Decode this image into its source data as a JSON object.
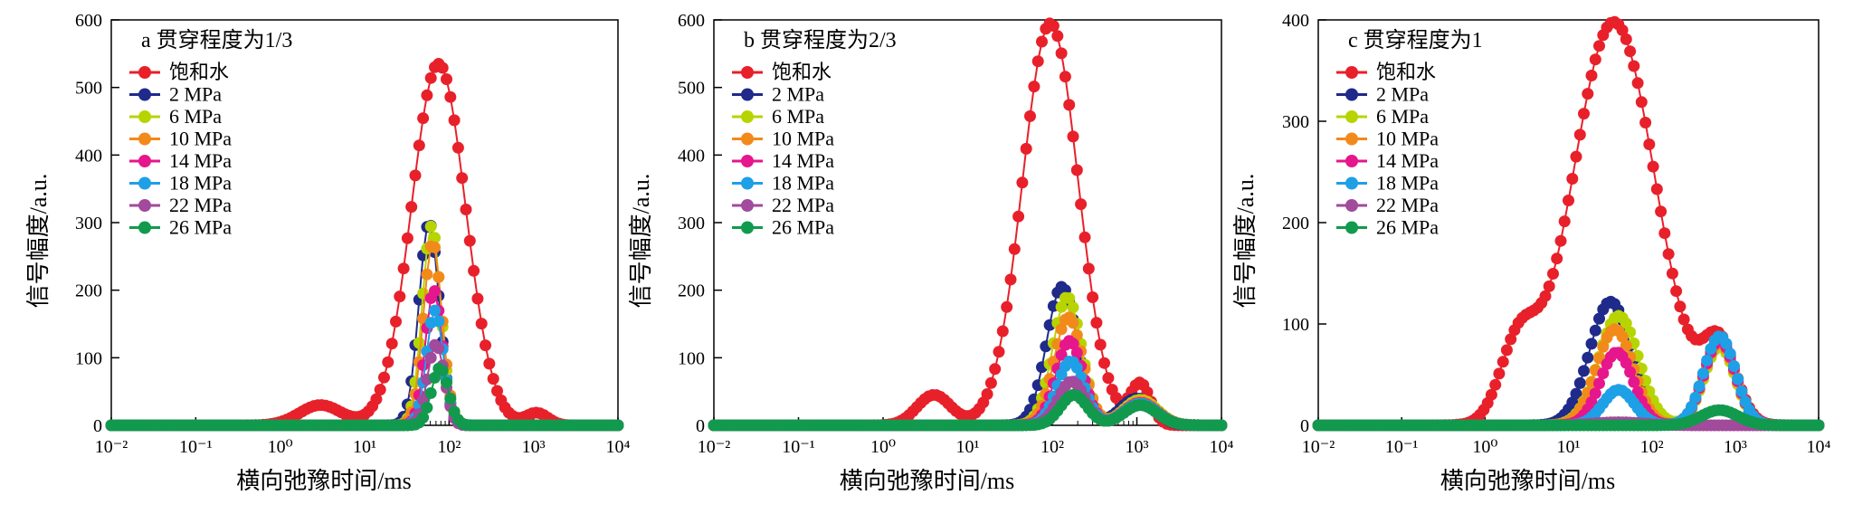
{
  "chart_data": [
    {
      "type": "scatter",
      "title": "a 贯穿程度为1/3",
      "xlabel": "横向弛豫时间/ms",
      "ylabel": "信号幅度/a.u.",
      "xscale": "log",
      "xlim": [
        0.01,
        10000
      ],
      "ylim": [
        0,
        600
      ],
      "x_ticks": [
        "10⁻²",
        "10⁻¹",
        "10⁰",
        "10¹",
        "10²",
        "10³",
        "10⁴"
      ],
      "y_ticks": [
        "0",
        "100",
        "200",
        "300",
        "400",
        "500",
        "600"
      ],
      "legend_position": "top-left",
      "series": [
        {
          "name": "饱和水",
          "color": "#e8202a",
          "peaks": [
            {
              "x": 3,
              "y": 30,
              "w": 0.25
            },
            {
              "x": 75,
              "y": 535,
              "w": 0.32
            },
            {
              "x": 1100,
              "y": 18,
              "w": 0.13
            }
          ]
        },
        {
          "name": "2 MPa",
          "color": "#1f2a8a",
          "peaks": [
            {
              "x": 58,
              "y": 300,
              "w": 0.12
            }
          ]
        },
        {
          "name": "6 MPa",
          "color": "#b8d400",
          "peaks": [
            {
              "x": 62,
              "y": 295,
              "w": 0.11
            }
          ]
        },
        {
          "name": "10 MPa",
          "color": "#f28a1b",
          "peaks": [
            {
              "x": 64,
              "y": 270,
              "w": 0.11
            }
          ]
        },
        {
          "name": "14 MPa",
          "color": "#e6168c",
          "peaks": [
            {
              "x": 66,
              "y": 200,
              "w": 0.1
            }
          ]
        },
        {
          "name": "18 MPa",
          "color": "#1ea0e6",
          "peaks": [
            {
              "x": 68,
              "y": 170,
              "w": 0.1
            }
          ]
        },
        {
          "name": "22 MPa",
          "color": "#a24a9c",
          "peaks": [
            {
              "x": 70,
              "y": 120,
              "w": 0.1
            }
          ]
        },
        {
          "name": "26 MPa",
          "color": "#119a4d",
          "peaks": [
            {
              "x": 78,
              "y": 85,
              "w": 0.1
            }
          ]
        }
      ]
    },
    {
      "type": "scatter",
      "title": "b 贯穿程度为2/3",
      "xlabel": "横向弛豫时间/ms",
      "ylabel": "信号幅度/a.u.",
      "xscale": "log",
      "xlim": [
        0.01,
        10000
      ],
      "ylim": [
        0,
        600
      ],
      "x_ticks": [
        "10⁻²",
        "10⁻¹",
        "10⁰",
        "10¹",
        "10²",
        "10³",
        "10⁴"
      ],
      "y_ticks": [
        "0",
        "100",
        "200",
        "300",
        "400",
        "500",
        "600"
      ],
      "legend_position": "top-left",
      "series": [
        {
          "name": "饱和水",
          "color": "#e8202a",
          "peaks": [
            {
              "x": 4,
              "y": 45,
              "w": 0.2
            },
            {
              "x": 95,
              "y": 595,
              "w": 0.33
            },
            {
              "x": 1100,
              "y": 60,
              "w": 0.12
            }
          ]
        },
        {
          "name": "2 MPa",
          "color": "#1f2a8a",
          "peaks": [
            {
              "x": 130,
              "y": 205,
              "w": 0.18
            },
            {
              "x": 1000,
              "y": 40,
              "w": 0.2
            }
          ]
        },
        {
          "name": "6 MPa",
          "color": "#b8d400",
          "peaks": [
            {
              "x": 150,
              "y": 190,
              "w": 0.17
            },
            {
              "x": 1100,
              "y": 38,
              "w": 0.2
            }
          ]
        },
        {
          "name": "10 MPa",
          "color": "#f28a1b",
          "peaks": [
            {
              "x": 155,
              "y": 160,
              "w": 0.17
            },
            {
              "x": 1100,
              "y": 35,
              "w": 0.2
            }
          ]
        },
        {
          "name": "14 MPa",
          "color": "#e6168c",
          "peaks": [
            {
              "x": 160,
              "y": 125,
              "w": 0.16
            },
            {
              "x": 1100,
              "y": 33,
              "w": 0.2
            }
          ]
        },
        {
          "name": "18 MPa",
          "color": "#1ea0e6",
          "peaks": [
            {
              "x": 165,
              "y": 95,
              "w": 0.16
            },
            {
              "x": 1100,
              "y": 32,
              "w": 0.2
            }
          ]
        },
        {
          "name": "22 MPa",
          "color": "#a24a9c",
          "peaks": [
            {
              "x": 170,
              "y": 65,
              "w": 0.16
            },
            {
              "x": 1100,
              "y": 30,
              "w": 0.2
            }
          ]
        },
        {
          "name": "26 MPa",
          "color": "#119a4d",
          "peaks": [
            {
              "x": 180,
              "y": 45,
              "w": 0.16
            },
            {
              "x": 1100,
              "y": 30,
              "w": 0.2
            }
          ]
        }
      ]
    },
    {
      "type": "scatter",
      "title": "c 贯穿程度为1",
      "xlabel": "横向弛豫时间/ms",
      "ylabel": "信号幅度/a.u.",
      "xscale": "log",
      "xlim": [
        0.01,
        10000
      ],
      "ylim": [
        0,
        400
      ],
      "x_ticks": [
        "10⁻²",
        "10⁻¹",
        "10⁰",
        "10¹",
        "10²",
        "10³",
        "10⁴"
      ],
      "y_ticks": [
        "0",
        "100",
        "200",
        "300",
        "400"
      ],
      "legend_position": "top-left",
      "series": [
        {
          "name": "饱和水",
          "color": "#e8202a",
          "peaks": [
            {
              "x": 2.5,
              "y": 72,
              "w": 0.22
            },
            {
              "x": 35,
              "y": 398,
              "w": 0.5
            },
            {
              "x": 650,
              "y": 75,
              "w": 0.2
            }
          ]
        },
        {
          "name": "2 MPa",
          "color": "#1f2a8a",
          "peaks": [
            {
              "x": 32,
              "y": 122,
              "w": 0.25
            },
            {
              "x": 650,
              "y": 80,
              "w": 0.19
            }
          ]
        },
        {
          "name": "6 MPa",
          "color": "#b8d400",
          "peaks": [
            {
              "x": 40,
              "y": 108,
              "w": 0.24
            },
            {
              "x": 650,
              "y": 78,
              "w": 0.19
            }
          ]
        },
        {
          "name": "10 MPa",
          "color": "#f28a1b",
          "peaks": [
            {
              "x": 36,
              "y": 95,
              "w": 0.22
            },
            {
              "x": 650,
              "y": 82,
              "w": 0.19
            }
          ]
        },
        {
          "name": "14 MPa",
          "color": "#e6168c",
          "peaks": [
            {
              "x": 38,
              "y": 72,
              "w": 0.2
            },
            {
              "x": 650,
              "y": 84,
              "w": 0.19
            }
          ]
        },
        {
          "name": "18 MPa",
          "color": "#1ea0e6",
          "peaks": [
            {
              "x": 40,
              "y": 35,
              "w": 0.19
            },
            {
              "x": 650,
              "y": 88,
              "w": 0.19
            }
          ]
        },
        {
          "name": "22 MPa",
          "color": "#a24a9c",
          "peaks": [
            {
              "x": 40,
              "y": 3,
              "w": 0.3
            }
          ]
        },
        {
          "name": "26 MPa",
          "color": "#119a4d",
          "peaks": [
            {
              "x": 650,
              "y": 15,
              "w": 0.22
            }
          ]
        }
      ]
    }
  ]
}
